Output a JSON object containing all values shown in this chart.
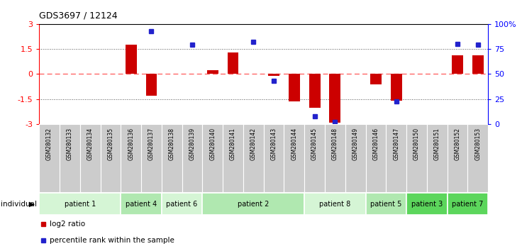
{
  "title": "GDS3697 / 12124",
  "samples": [
    "GSM280132",
    "GSM280133",
    "GSM280134",
    "GSM280135",
    "GSM280136",
    "GSM280137",
    "GSM280138",
    "GSM280139",
    "GSM280140",
    "GSM280141",
    "GSM280142",
    "GSM280143",
    "GSM280144",
    "GSM280145",
    "GSM280148",
    "GSM280149",
    "GSM280146",
    "GSM280147",
    "GSM280150",
    "GSM280151",
    "GSM280152",
    "GSM280153"
  ],
  "log2_ratio": [
    0.0,
    0.0,
    0.0,
    0.0,
    1.75,
    -1.3,
    0.0,
    0.0,
    0.25,
    1.3,
    0.0,
    -0.1,
    -1.65,
    -2.0,
    -2.9,
    0.0,
    -0.6,
    -1.6,
    0.0,
    0.0,
    1.1,
    1.1
  ],
  "percentile": [
    null,
    null,
    null,
    null,
    null,
    93,
    null,
    79,
    null,
    null,
    82,
    43,
    null,
    8,
    2,
    null,
    null,
    23,
    null,
    null,
    80,
    79
  ],
  "patients": [
    {
      "label": "patient 1",
      "start": 0,
      "end": 4,
      "color": "#d5f5d5"
    },
    {
      "label": "patient 4",
      "start": 4,
      "end": 6,
      "color": "#b0e8b0"
    },
    {
      "label": "patient 6",
      "start": 6,
      "end": 8,
      "color": "#d5f5d5"
    },
    {
      "label": "patient 2",
      "start": 8,
      "end": 13,
      "color": "#b0e8b0"
    },
    {
      "label": "patient 8",
      "start": 13,
      "end": 16,
      "color": "#d5f5d5"
    },
    {
      "label": "patient 5",
      "start": 16,
      "end": 18,
      "color": "#b0e8b0"
    },
    {
      "label": "patient 3",
      "start": 18,
      "end": 20,
      "color": "#5cd65c"
    },
    {
      "label": "patient 7",
      "start": 20,
      "end": 22,
      "color": "#5cd65c"
    }
  ],
  "ylim_left": [
    -3,
    3
  ],
  "ylim_right": [
    0,
    100
  ],
  "yticks_left": [
    -3,
    -1.5,
    0,
    1.5,
    3
  ],
  "yticks_right": [
    0,
    25,
    50,
    75,
    100
  ],
  "ytick_labels_right": [
    "0",
    "25",
    "50",
    "75",
    "100%"
  ],
  "bar_color": "#cc0000",
  "dot_color": "#2222cc",
  "zero_line_color": "#ff6666",
  "dotted_line_color": "#555555",
  "sample_bg_color": "#cccccc",
  "legend_items": [
    {
      "color": "#cc0000",
      "label": "log2 ratio"
    },
    {
      "color": "#2222cc",
      "label": "percentile rank within the sample"
    }
  ]
}
